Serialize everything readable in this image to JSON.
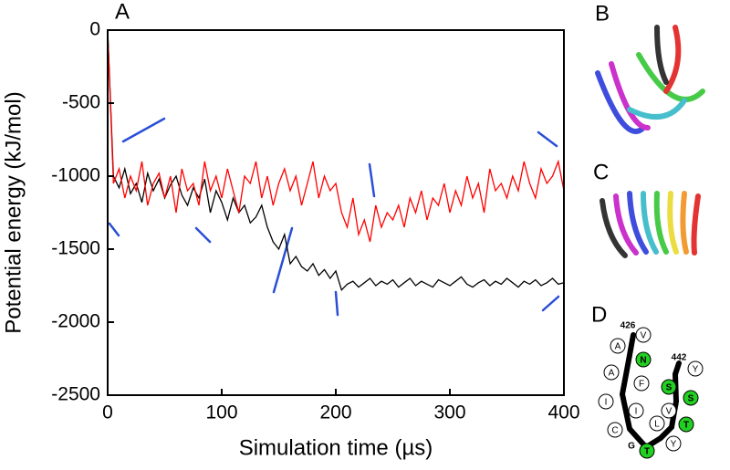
{
  "chart_data": {
    "type": "line",
    "panel_label": "A",
    "xlabel": "Simulation time (µs)",
    "ylabel": "Potential energy (kJ/mol)",
    "xlim": [
      0,
      400
    ],
    "ylim": [
      -2500,
      0
    ],
    "xticks": [
      0,
      100,
      200,
      300,
      400
    ],
    "yticks": [
      0,
      -500,
      -1000,
      -1500,
      -2000,
      -2500
    ],
    "x": [
      0,
      5,
      10,
      15,
      20,
      25,
      30,
      35,
      40,
      45,
      50,
      55,
      60,
      65,
      70,
      75,
      80,
      85,
      90,
      95,
      100,
      105,
      110,
      115,
      120,
      125,
      130,
      135,
      140,
      145,
      150,
      155,
      160,
      165,
      170,
      175,
      180,
      185,
      190,
      195,
      200,
      205,
      210,
      215,
      220,
      225,
      230,
      235,
      240,
      245,
      250,
      255,
      260,
      265,
      270,
      275,
      280,
      285,
      290,
      295,
      300,
      305,
      310,
      315,
      320,
      325,
      330,
      335,
      340,
      345,
      350,
      355,
      360,
      365,
      370,
      375,
      380,
      385,
      390,
      395,
      400
    ],
    "series": [
      {
        "color": "#000000",
        "values": [
          0,
          -1000,
          -1080,
          -950,
          -1120,
          -1050,
          -1180,
          -980,
          -1100,
          -1020,
          -1150,
          -1060,
          -1000,
          -1130,
          -1200,
          -1080,
          -1150,
          -1020,
          -1250,
          -1100,
          -1180,
          -1300,
          -1150,
          -1250,
          -1200,
          -1320,
          -1280,
          -1200,
          -1350,
          -1450,
          -1500,
          -1400,
          -1600,
          -1550,
          -1620,
          -1650,
          -1600,
          -1680,
          -1640,
          -1700,
          -1650,
          -1780,
          -1740,
          -1720,
          -1760,
          -1730,
          -1700,
          -1750,
          -1720,
          -1740,
          -1710,
          -1760,
          -1730,
          -1700,
          -1750,
          -1720,
          -1740,
          -1760,
          -1710,
          -1730,
          -1750,
          -1720,
          -1690,
          -1740,
          -1760,
          -1730,
          -1710,
          -1750,
          -1720,
          -1740,
          -1700,
          -1730,
          -1760,
          -1720,
          -1740,
          -1710,
          -1750,
          -1730,
          -1700,
          -1740,
          -1730
        ]
      },
      {
        "color": "#ff0000",
        "values": [
          0,
          -1050,
          -950,
          -1150,
          -1000,
          -1100,
          -900,
          -1200,
          -1050,
          -980,
          -1150,
          -1000,
          -1250,
          -950,
          -1100,
          -1050,
          -1200,
          -900,
          -1100,
          -1000,
          -1150,
          -950,
          -1100,
          -1250,
          -1000,
          -1050,
          -900,
          -1150,
          -1000,
          -1200,
          -1050,
          -950,
          -1100,
          -1000,
          -1200,
          -1050,
          -900,
          -1150,
          -1000,
          -1100,
          -1050,
          -1250,
          -1350,
          -1150,
          -1400,
          -1300,
          -1450,
          -1200,
          -1350,
          -1250,
          -1300,
          -1200,
          -1350,
          -1150,
          -1250,
          -1100,
          -1300,
          -1150,
          -1200,
          -1050,
          -1250,
          -1100,
          -1200,
          -1000,
          -1150,
          -1050,
          -1250,
          -950,
          -1100,
          -1050,
          -1150,
          -1000,
          -1100,
          -900,
          -1050,
          -1150,
          -950,
          -1050,
          -1000,
          -900,
          -1100
        ]
      }
    ]
  },
  "side_panels": [
    {
      "label": "B"
    },
    {
      "label": "C"
    },
    {
      "label": "D",
      "start": "426",
      "end": "442",
      "turn": "G",
      "residues": [
        {
          "label": "V",
          "highlight": false
        },
        {
          "label": "A",
          "highlight": false
        },
        {
          "label": "N",
          "highlight": true
        },
        {
          "label": "Y",
          "highlight": false
        },
        {
          "label": "A",
          "highlight": false
        },
        {
          "label": "F",
          "highlight": false
        },
        {
          "label": "S",
          "highlight": true
        },
        {
          "label": "S",
          "highlight": true
        },
        {
          "label": "I",
          "highlight": false
        },
        {
          "label": "I",
          "highlight": false
        },
        {
          "label": "V",
          "highlight": false
        },
        {
          "label": "C",
          "highlight": false
        },
        {
          "label": "L",
          "highlight": false
        },
        {
          "label": "T",
          "highlight": true
        },
        {
          "label": "T",
          "highlight": true
        },
        {
          "label": "Y",
          "highlight": false
        }
      ]
    }
  ]
}
